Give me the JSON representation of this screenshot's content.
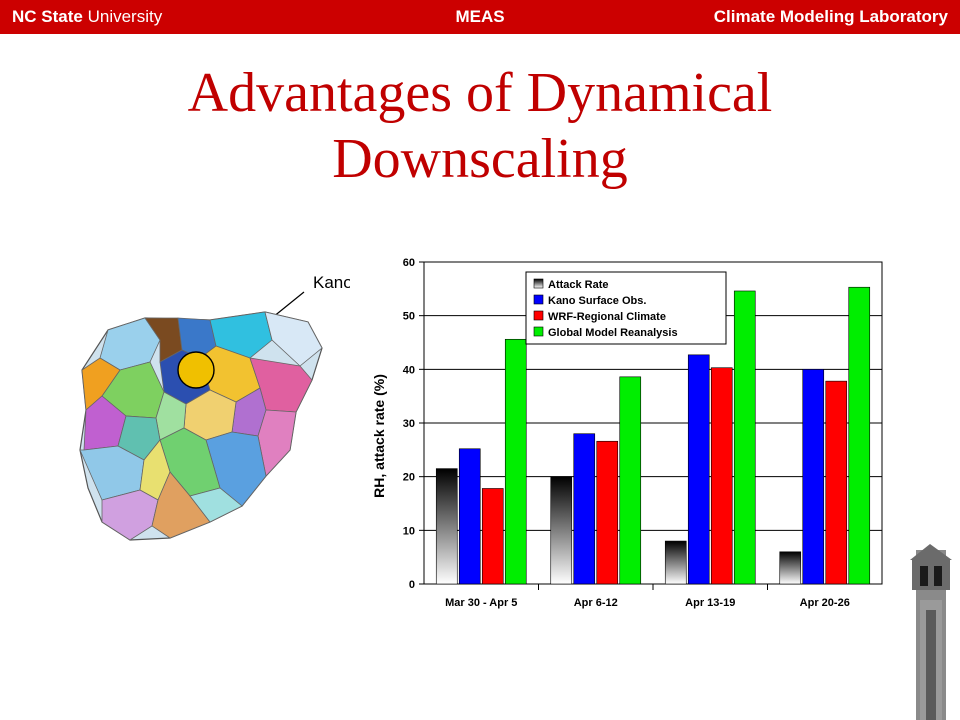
{
  "header": {
    "university_bold": "NC State",
    "university_rest": " University",
    "department": "MEAS",
    "lab": "Climate Modeling Laboratory",
    "bar_color": "#cc0000"
  },
  "slide": {
    "title_line1": "Advantages of Dynamical",
    "title_line2": "Downscaling",
    "title_color": "#c00000"
  },
  "map": {
    "highlight_label": "Kano",
    "icon": "nigeria-states-map"
  },
  "chart_data": {
    "type": "bar",
    "categories": [
      "Mar 30 - Apr 5",
      "Apr 6-12",
      "Apr 13-19",
      "Apr 20-26"
    ],
    "series": [
      {
        "name": "Attack Rate",
        "values": [
          21.5,
          20,
          8,
          6
        ],
        "color": "gradient-black"
      },
      {
        "name": "Kano Surface Obs.",
        "values": [
          25.2,
          28,
          42.7,
          40
        ],
        "color": "#0000ff"
      },
      {
        "name": "WRF-Regional Climate",
        "values": [
          17.8,
          26.6,
          40.3,
          37.8
        ],
        "color": "#ff0000"
      },
      {
        "name": "Global Model Reanalysis",
        "values": [
          45.6,
          38.6,
          54.6,
          55.3
        ],
        "color": "#00ee00"
      }
    ],
    "ylabel": "RH, attack rate (%)",
    "ylim": [
      0,
      60
    ],
    "yticks": [
      0,
      10,
      20,
      30,
      40,
      50,
      60
    ],
    "grid": true,
    "legend": "top-center"
  }
}
